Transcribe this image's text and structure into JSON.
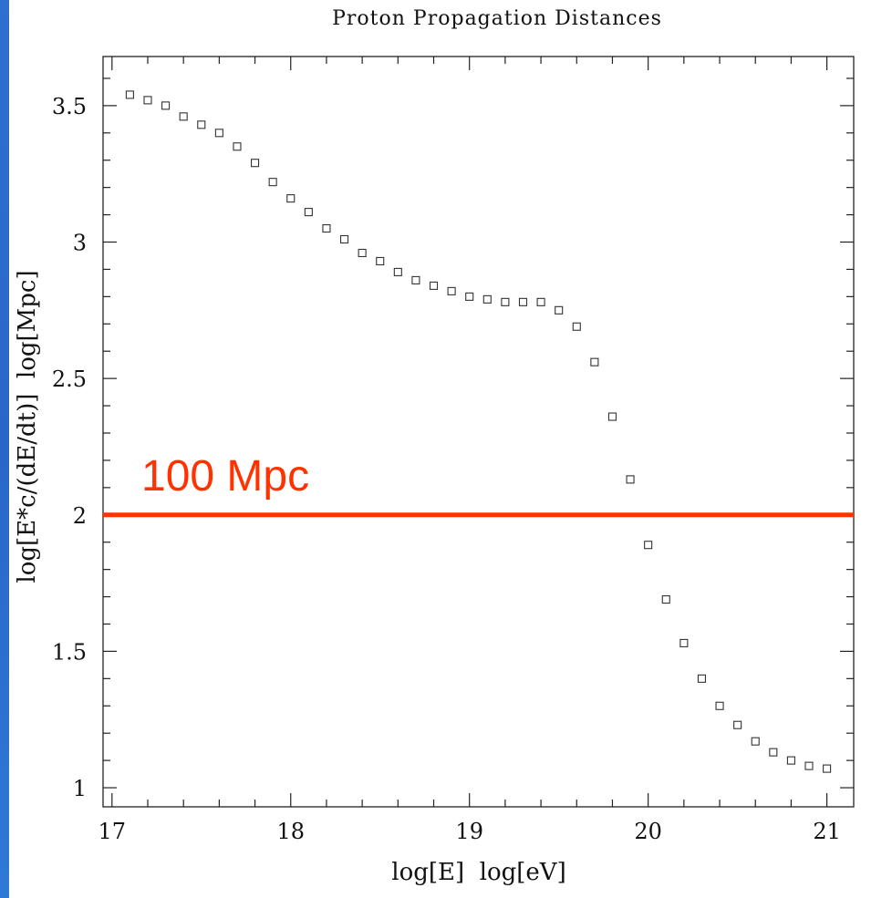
{
  "chart_data": {
    "type": "scatter",
    "title": "Proton Propagation Distances",
    "xlabel": "log[E]  log[eV]",
    "ylabel": "log[E*c/(dE/dt)]  log[Mpc]",
    "xlim": [
      16.95,
      21.15
    ],
    "ylim": [
      0.93,
      3.68
    ],
    "x_ticks": [
      17,
      18,
      19,
      20,
      21
    ],
    "x_tick_labels": [
      "17",
      "18",
      "19",
      "20",
      "21"
    ],
    "y_ticks": [
      1,
      1.5,
      2,
      2.5,
      3,
      3.5
    ],
    "y_tick_labels": [
      "1",
      "1.5",
      "2",
      "2.5",
      "3",
      "3.5"
    ],
    "grid": false,
    "marker": "open-square",
    "series": [
      {
        "x": [
          17.1,
          17.2,
          17.3,
          17.4,
          17.5,
          17.6,
          17.7,
          17.8,
          17.9,
          18.0,
          18.1,
          18.2,
          18.3,
          18.4,
          18.5,
          18.6,
          18.7,
          18.8,
          18.9,
          19.0,
          19.1,
          19.2,
          19.3,
          19.4,
          19.5,
          19.6,
          19.7,
          19.8,
          19.9,
          20.0,
          20.1,
          20.2,
          20.3,
          20.4,
          20.5,
          20.6,
          20.7,
          20.8,
          20.9,
          21.0
        ],
        "y": [
          3.54,
          3.52,
          3.5,
          3.46,
          3.43,
          3.4,
          3.35,
          3.29,
          3.22,
          3.16,
          3.11,
          3.05,
          3.01,
          2.96,
          2.93,
          2.89,
          2.86,
          2.84,
          2.82,
          2.8,
          2.79,
          2.78,
          2.78,
          2.78,
          2.75,
          2.69,
          2.56,
          2.36,
          2.13,
          1.89,
          1.69,
          1.53,
          1.4,
          1.3,
          1.23,
          1.17,
          1.13,
          1.1,
          1.08,
          1.07
        ]
      }
    ],
    "reference_line": {
      "y": 2,
      "label": "100 Mpc",
      "color": "#ff3300"
    }
  }
}
